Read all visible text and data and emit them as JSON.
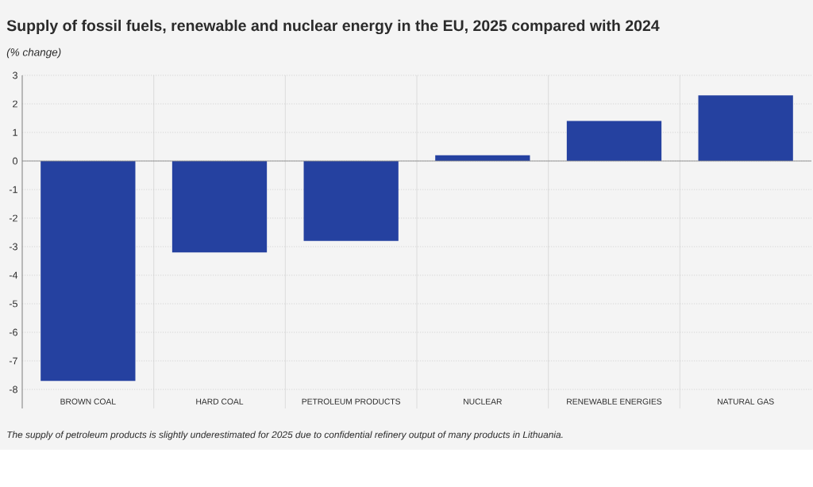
{
  "chart_data": {
    "type": "bar",
    "title": "Supply of fossil fuels, renewable and nuclear energy in the EU, 2025 compared with 2024",
    "subtitle": "(% change)",
    "categories": [
      "BROWN COAL",
      "HARD COAL",
      "PETROLEUM PRODUCTS",
      "NUCLEAR",
      "RENEWABLE ENERGIES",
      "NATURAL GAS"
    ],
    "values": [
      -7.7,
      -3.2,
      -2.8,
      0.2,
      1.4,
      2.3
    ],
    "color": "#2541a0",
    "ylim": [
      -8,
      3
    ],
    "yticks": [
      -8,
      -7,
      -6,
      -5,
      -4,
      -3,
      -2,
      -1,
      0,
      1,
      2,
      3
    ],
    "grid": true,
    "annotations": [
      "The supply of petroleum products is slightly underestimated for 2025 due to confidential refinery output of many products in Lithuania."
    ]
  }
}
